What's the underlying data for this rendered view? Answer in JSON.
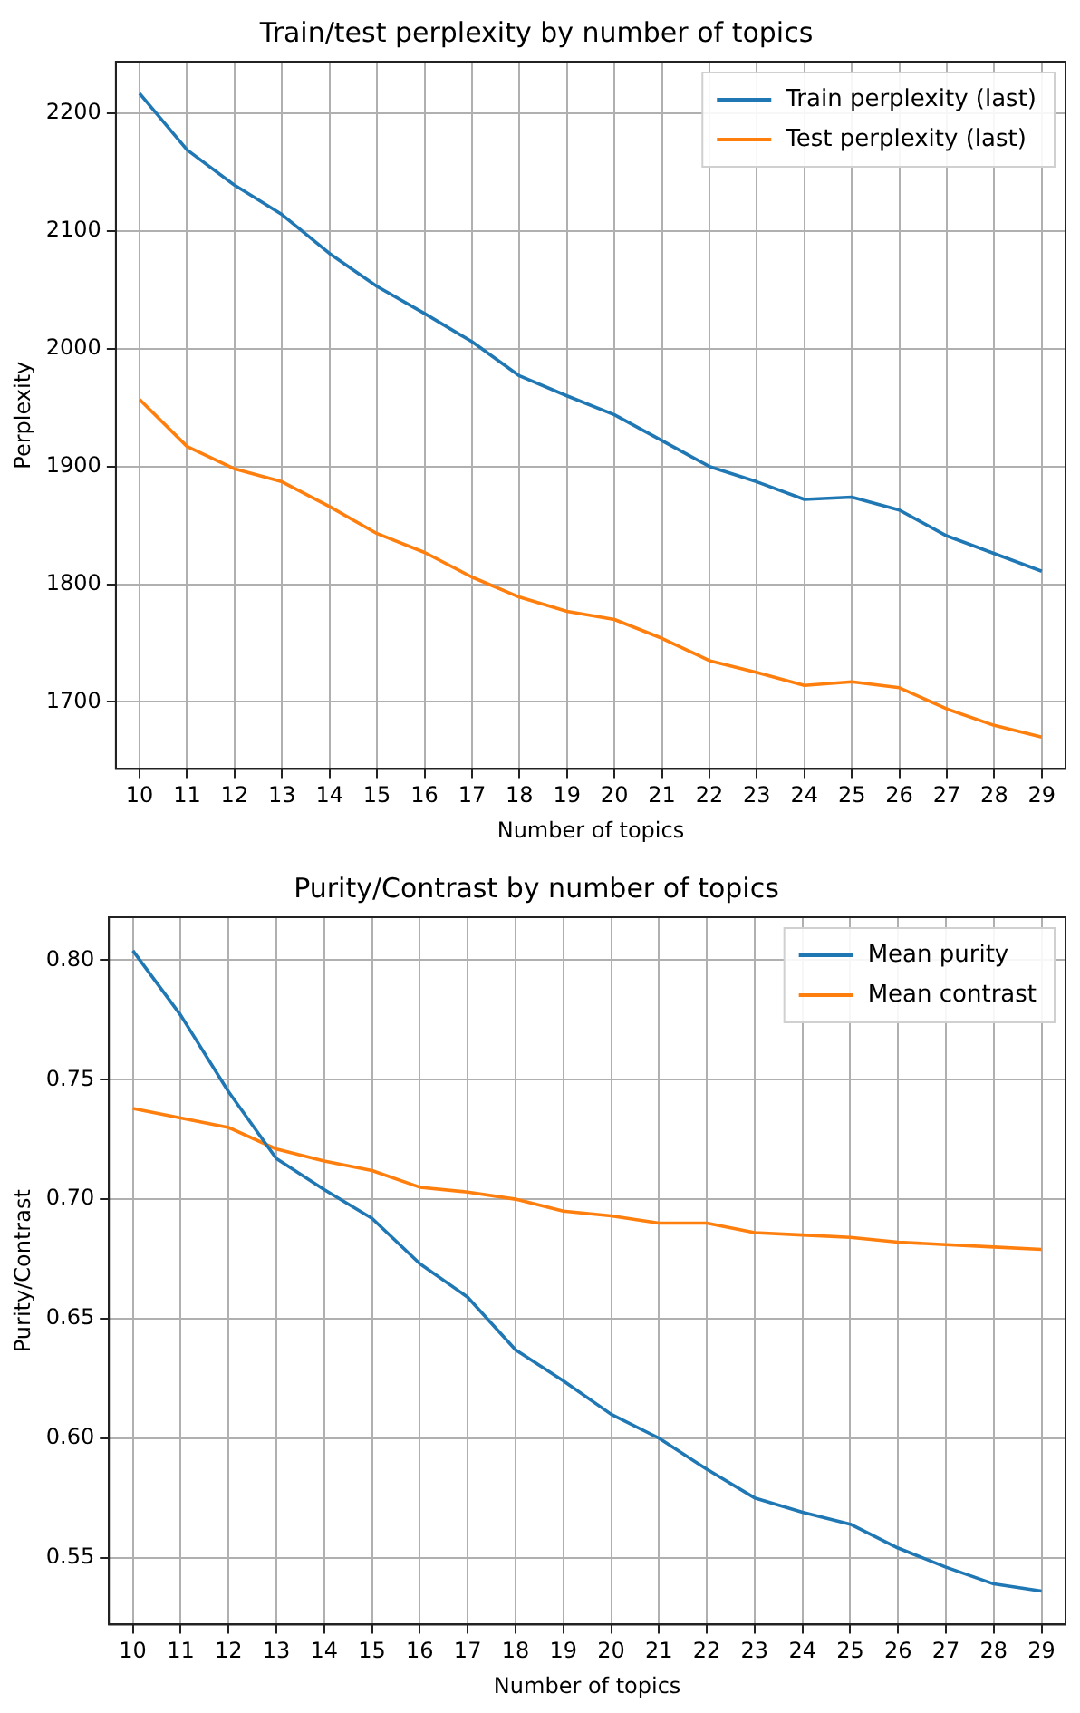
{
  "chart_data": [
    {
      "type": "line",
      "title": "Train/test perplexity by number of topics",
      "xlabel": "Number of topics",
      "ylabel": "Perplexity",
      "categories": [
        "10",
        "11",
        "12",
        "13",
        "14",
        "15",
        "16",
        "17",
        "18",
        "19",
        "20",
        "21",
        "22",
        "23",
        "24",
        "25",
        "26",
        "27",
        "28",
        "29"
      ],
      "series": [
        {
          "name": "Train perplexity (last)",
          "color": "#1f77b4",
          "values": [
            2217,
            2169,
            2139,
            2114,
            2081,
            2053,
            2030,
            2006,
            1977,
            1960,
            1944,
            1922,
            1900,
            1887,
            1872,
            1874,
            1863,
            1841,
            1826,
            1811
          ]
        },
        {
          "name": "Test perplexity (last)",
          "color": "#ff7f0e",
          "values": [
            1957,
            1917,
            1898,
            1887,
            1866,
            1843,
            1827,
            1806,
            1789,
            1777,
            1770,
            1754,
            1735,
            1725,
            1714,
            1717,
            1712,
            1694,
            1680,
            1670
          ]
        }
      ],
      "ylim": [
        1643,
        2244
      ],
      "yticks": [
        1700,
        1800,
        1900,
        2000,
        2100,
        2200
      ],
      "grid": true,
      "legend": "top right",
      "marker": "none",
      "line_style": "solid"
    },
    {
      "type": "line",
      "title": "Purity/Contrast by number of topics",
      "xlabel": "Number of topics",
      "ylabel": "Purity/Contrast",
      "categories": [
        "10",
        "11",
        "12",
        "13",
        "14",
        "15",
        "16",
        "17",
        "18",
        "19",
        "20",
        "21",
        "22",
        "23",
        "24",
        "25",
        "26",
        "27",
        "28",
        "29"
      ],
      "series": [
        {
          "name": "Mean purity",
          "color": "#1f77b4",
          "values": [
            0.804,
            0.777,
            0.745,
            0.717,
            0.704,
            0.692,
            0.673,
            0.659,
            0.637,
            0.624,
            0.61,
            0.6,
            0.587,
            0.575,
            0.569,
            0.564,
            0.554,
            0.546,
            0.539,
            0.536
          ]
        },
        {
          "name": "Mean contrast",
          "color": "#ff7f0e",
          "values": [
            0.738,
            0.734,
            0.73,
            0.721,
            0.716,
            0.712,
            0.705,
            0.703,
            0.7,
            0.695,
            0.693,
            0.69,
            0.69,
            0.686,
            0.685,
            0.684,
            0.682,
            0.681,
            0.68,
            0.679
          ]
        }
      ],
      "ylim": [
        0.522,
        0.818
      ],
      "yticks": [
        {
          "value": 0.55,
          "label": "0.55"
        },
        {
          "value": 0.6,
          "label": "0.60"
        },
        {
          "value": 0.65,
          "label": "0.65"
        },
        {
          "value": 0.7,
          "label": "0.70"
        },
        {
          "value": 0.75,
          "label": "0.75"
        },
        {
          "value": 0.8,
          "label": "0.80"
        }
      ],
      "grid": true,
      "legend": "top right",
      "marker": "none",
      "line_style": "solid"
    }
  ]
}
